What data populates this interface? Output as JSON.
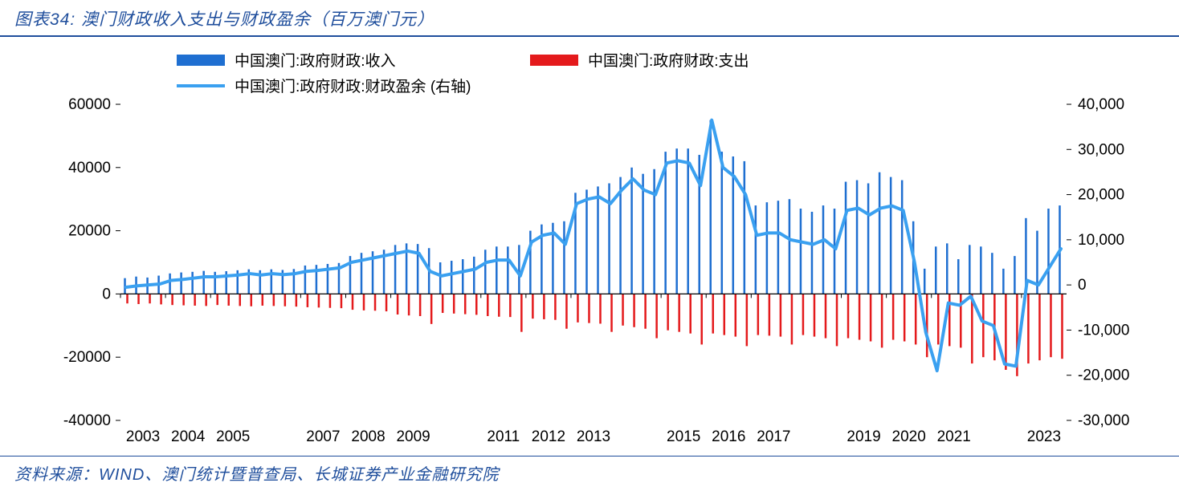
{
  "title_prefix": "图表",
  "title_num": "34",
  "title_sep": ":",
  "title_text": "  澳门财政收入支出与财政盈余（百万澳门元）",
  "source_label": "资料来源：",
  "source_text": "WIND、澳门统计暨普查局、长城证券产业金融研究院",
  "chart": {
    "type": "bar+bar+line",
    "colors": {
      "revenue_bar": "#1f6fd1",
      "expenditure_bar": "#e41a1c",
      "surplus_line": "#3aa0f0",
      "axis": "#000000",
      "tick_text": "#000000",
      "background": "#ffffff"
    },
    "legend": {
      "items": [
        {
          "key": "revenue",
          "marker": "bar",
          "color": "#1f6fd1",
          "label": "中国澳门:政府财政:收入"
        },
        {
          "key": "expenditure",
          "marker": "bar",
          "color": "#e41a1c",
          "label": "中国澳门:政府财政:支出"
        },
        {
          "key": "surplus",
          "marker": "line",
          "color": "#3aa0f0",
          "label": "中国澳门:政府财政:财政盈余 (右轴)"
        }
      ],
      "fontsize": 19
    },
    "left_axis": {
      "min": -40000,
      "max": 60000,
      "ticks": [
        -40000,
        -20000,
        0,
        20000,
        40000,
        60000
      ],
      "fontsize": 19
    },
    "right_axis": {
      "min": -30000,
      "max": 40000,
      "ticks": [
        -30000,
        -20000,
        -10000,
        0,
        10000,
        20000,
        30000,
        40000
      ],
      "tick_labels": [
        "-30,000",
        "-20,000",
        "-10,000",
        "0",
        "10,000",
        "20,000",
        "30,000",
        "40,000"
      ],
      "fontsize": 19
    },
    "x_axis": {
      "labels": [
        "2003",
        "2004",
        "2005",
        "2007",
        "2008",
        "2009",
        "2011",
        "2012",
        "2013",
        "2015",
        "2016",
        "2017",
        "2019",
        "2020",
        "2021",
        "2023"
      ],
      "label_positions": [
        0,
        4,
        8,
        16,
        20,
        24,
        32,
        36,
        40,
        48,
        52,
        56,
        64,
        68,
        72,
        80
      ],
      "n_points": 84,
      "fontsize": 19
    },
    "line_width": 4,
    "bar_width": 2.5,
    "revenue": [
      5000,
      5500,
      5200,
      5800,
      6500,
      6800,
      7000,
      7300,
      7000,
      7200,
      7500,
      7800,
      7500,
      7800,
      7600,
      7900,
      9000,
      9200,
      9500,
      9800,
      12000,
      13000,
      13500,
      14000,
      15500,
      16000,
      15800,
      14500,
      10000,
      10500,
      11000,
      11800,
      14000,
      15000,
      15000,
      15500,
      20000,
      22000,
      22500,
      23000,
      32000,
      33000,
      34000,
      35000,
      37000,
      40000,
      38000,
      39500,
      45000,
      46000,
      46000,
      44000,
      55000,
      45000,
      43500,
      42000,
      28000,
      29000,
      29500,
      30000,
      27000,
      26000,
      28000,
      27000,
      35500,
      36000,
      35000,
      38500,
      37000,
      36000,
      23000,
      8000,
      15000,
      16000,
      11000,
      15500,
      15000,
      13000,
      8000,
      12000,
      24000,
      20000,
      27000,
      28000
    ],
    "expenditure": [
      -3000,
      -3200,
      -3000,
      -3300,
      -3500,
      -3600,
      -3700,
      -3800,
      -3500,
      -3700,
      -3800,
      -3900,
      -3700,
      -3800,
      -3900,
      -4000,
      -4200,
      -4300,
      -4400,
      -4500,
      -5000,
      -5200,
      -5300,
      -5500,
      -6500,
      -6800,
      -7000,
      -9500,
      -6000,
      -6200,
      -6400,
      -6600,
      -7000,
      -7200,
      -7300,
      -12000,
      -7800,
      -8000,
      -8200,
      -11000,
      -9000,
      -9200,
      -9400,
      -12000,
      -10000,
      -10500,
      -11000,
      -14000,
      -11500,
      -12000,
      -12500,
      -16000,
      -12500,
      -13000,
      -13500,
      -16500,
      -13000,
      -13200,
      -13500,
      -16000,
      -13000,
      -13500,
      -14000,
      -16500,
      -14000,
      -14500,
      -15000,
      -17000,
      -14500,
      -15000,
      -16000,
      -20000,
      -16000,
      -16500,
      -17000,
      -22000,
      -20000,
      -21000,
      -24000,
      -26000,
      -22000,
      -21000,
      -20000,
      -20500
    ],
    "surplus": [
      -500,
      -200,
      0,
      200,
      1000,
      1200,
      1500,
      1800,
      1800,
      2000,
      2200,
      2500,
      2200,
      2500,
      2300,
      2500,
      3000,
      3200,
      3500,
      3800,
      5000,
      5500,
      6000,
      6500,
      7000,
      7500,
      7000,
      3000,
      2000,
      2500,
      3000,
      3500,
      5000,
      5500,
      5500,
      2000,
      9500,
      11000,
      11500,
      9000,
      18000,
      19000,
      19500,
      18000,
      21000,
      23500,
      21000,
      20000,
      27000,
      27500,
      27000,
      22000,
      36500,
      26000,
      24000,
      20000,
      11000,
      11500,
      11500,
      10000,
      9500,
      9000,
      10000,
      8000,
      16500,
      17000,
      15500,
      17000,
      17500,
      16500,
      5000,
      -10500,
      -19000,
      -4000,
      -4500,
      -2500,
      -8000,
      -9000,
      -17500,
      -18000,
      1000,
      0,
      4000,
      8000
    ]
  }
}
